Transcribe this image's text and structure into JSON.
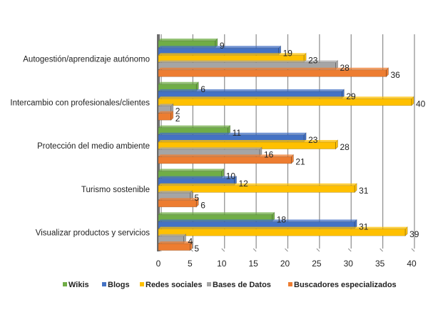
{
  "chart_data": {
    "type": "bar",
    "orientation": "horizontal",
    "style": "3d-clustered",
    "categories": [
      "Autogestión/aprendizaje autónomo",
      "Intercambio con profesionales/clientes",
      "Protección del medio ambiente",
      "Turismo sostenible",
      "Visualizar productos y servicios"
    ],
    "series": [
      {
        "name": "Wikis",
        "color": "#70AD47",
        "values": [
          9,
          6,
          11,
          10,
          18
        ]
      },
      {
        "name": "Blogs",
        "color": "#4472C4",
        "values": [
          19,
          29,
          23,
          12,
          31
        ]
      },
      {
        "name": "Redes sociales",
        "color": "#FFC000",
        "values": [
          23,
          40,
          28,
          31,
          39
        ]
      },
      {
        "name": "Bases de Datos",
        "color": "#A5A5A5",
        "values": [
          28,
          2,
          16,
          5,
          4
        ]
      },
      {
        "name": "Buscadores especializados",
        "color": "#ED7D31",
        "values": [
          36,
          2,
          21,
          6,
          5
        ]
      }
    ],
    "xlim": [
      0,
      40
    ],
    "xticks": [
      "0",
      "5",
      "10",
      "15",
      "20",
      "25",
      "30",
      "35",
      "40"
    ],
    "grid": true,
    "data_labels": true,
    "legend": "bottom",
    "title": "",
    "xlabel": "",
    "ylabel": ""
  }
}
